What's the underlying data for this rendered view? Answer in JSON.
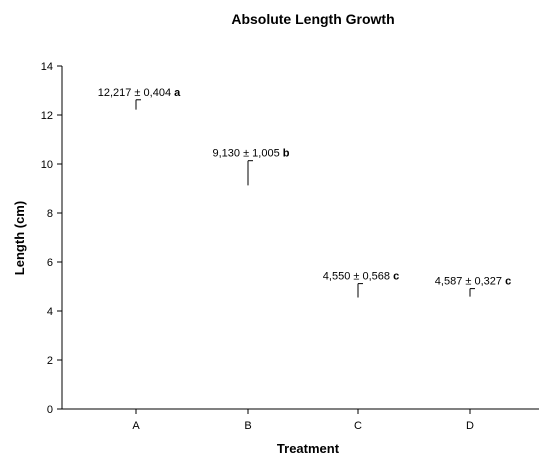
{
  "chart_data": {
    "type": "scatter",
    "title": "Absolute Length Growth",
    "xlabel": "Treatment",
    "ylabel": "Length (cm)",
    "categories": [
      "A",
      "B",
      "C",
      "D"
    ],
    "ylim": [
      0,
      14
    ],
    "yticks": [
      0,
      2,
      4,
      6,
      8,
      10,
      12,
      14
    ],
    "grid": false,
    "legend": "none",
    "error_bars": "one-sided (upper)",
    "points": [
      {
        "category": "A",
        "mean": 12.217,
        "sd": 0.404,
        "label": "12,217 ± 0,404",
        "group": "a"
      },
      {
        "category": "B",
        "mean": 9.13,
        "sd": 1.005,
        "label": "9,130 ± 1,005",
        "group": "b"
      },
      {
        "category": "C",
        "mean": 4.55,
        "sd": 0.568,
        "label": "4,550 ± 0,568",
        "group": "c"
      },
      {
        "category": "D",
        "mean": 4.587,
        "sd": 0.327,
        "label": "4,587 ± 0,327",
        "group": "c"
      }
    ]
  }
}
